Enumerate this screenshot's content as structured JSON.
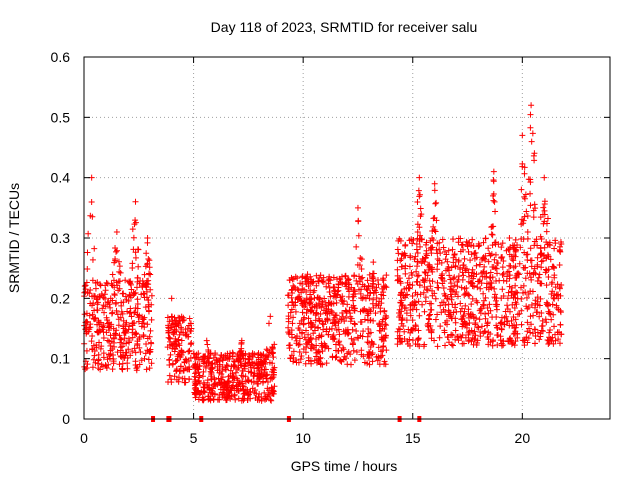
{
  "chart_data": {
    "type": "scatter",
    "title": "Day 118 of 2023, SRMTID for receiver salu",
    "xlabel": "GPS time / hours",
    "ylabel": "SRMTID / TECUs",
    "xlim": [
      0,
      24
    ],
    "ylim": [
      0,
      0.6
    ],
    "xticks": [
      0,
      5,
      10,
      15,
      20
    ],
    "yticks": [
      0,
      0.1,
      0.2,
      0.3,
      0.4,
      0.5,
      0.6
    ],
    "grid": true,
    "marker": "+",
    "color": "#ff0000",
    "gap_markers_x": [
      3.15,
      3.85,
      3.9,
      5.35,
      9.35,
      14.4,
      15.3
    ],
    "segments": [
      {
        "x_start": 0.0,
        "x_end": 3.1,
        "y_low": 0.08,
        "y_high": 0.23,
        "peaks": [
          [
            0.35,
            0.4
          ],
          [
            2.35,
            0.36
          ],
          [
            1.5,
            0.31
          ],
          [
            2.9,
            0.3
          ]
        ]
      },
      {
        "x_start": 3.8,
        "x_end": 4.9,
        "y_low": 0.06,
        "y_high": 0.17,
        "peaks": [
          [
            4.0,
            0.2
          ]
        ]
      },
      {
        "x_start": 5.0,
        "x_end": 8.7,
        "y_low": 0.03,
        "y_high": 0.11,
        "peaks": [
          [
            8.5,
            0.17
          ],
          [
            5.6,
            0.13
          ],
          [
            7.2,
            0.13
          ]
        ]
      },
      {
        "x_start": 9.3,
        "x_end": 13.8,
        "y_low": 0.09,
        "y_high": 0.24,
        "peaks": [
          [
            12.5,
            0.35
          ],
          [
            13.2,
            0.26
          ],
          [
            10.2,
            0.24
          ]
        ]
      },
      {
        "x_start": 14.3,
        "x_end": 21.8,
        "y_low": 0.12,
        "y_high": 0.3,
        "peaks": [
          [
            20.4,
            0.52
          ],
          [
            20.0,
            0.47
          ],
          [
            15.3,
            0.4
          ],
          [
            18.7,
            0.41
          ],
          [
            21.0,
            0.4
          ],
          [
            16.0,
            0.39
          ]
        ]
      }
    ]
  }
}
